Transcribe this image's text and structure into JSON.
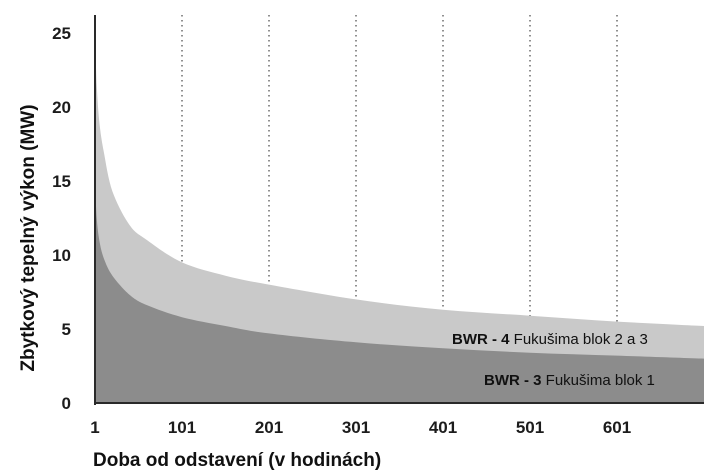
{
  "chart_data": {
    "type": "area",
    "xlabel": "Doba od odstavení (v hodinách)",
    "ylabel": "Zbytkový tepelný výkon (MW)",
    "xlim": [
      1,
      701
    ],
    "ylim": [
      0,
      25
    ],
    "x_ticks": [
      1,
      101,
      201,
      301,
      401,
      501,
      601
    ],
    "y_ticks": [
      0,
      5,
      10,
      15,
      20,
      25
    ],
    "grid": "vertical dotted",
    "colors": {
      "bwr4_fill": "#c9c9c9",
      "bwr3_fill": "#8c8c8c",
      "grid": "#555555",
      "axis": "#2a2a2a"
    },
    "series": [
      {
        "name": "BWR - 4 Fukušima blok 2 a 3",
        "label_parts": {
          "bold": "BWR - 4",
          "rest": " Fukušima blok 2 a 3"
        },
        "x": [
          1,
          3,
          6,
          11,
          21,
          41,
          61,
          101,
          151,
          201,
          301,
          401,
          501,
          601,
          701
        ],
        "y": [
          25.0,
          21.5,
          19.0,
          17.0,
          14.3,
          12.0,
          11.0,
          9.5,
          8.6,
          8.0,
          7.0,
          6.3,
          5.9,
          5.5,
          5.2
        ]
      },
      {
        "name": "BWR - 3 Fukušima blok 1",
        "label_parts": {
          "bold": "BWR - 3",
          "rest": " Fukušima blok 1"
        },
        "x": [
          1,
          3,
          6,
          11,
          21,
          41,
          61,
          101,
          151,
          201,
          301,
          401,
          501,
          601,
          701
        ],
        "y": [
          15.0,
          12.5,
          11.0,
          9.8,
          8.6,
          7.3,
          6.6,
          5.8,
          5.2,
          4.7,
          4.1,
          3.7,
          3.4,
          3.2,
          3.0
        ]
      }
    ]
  }
}
